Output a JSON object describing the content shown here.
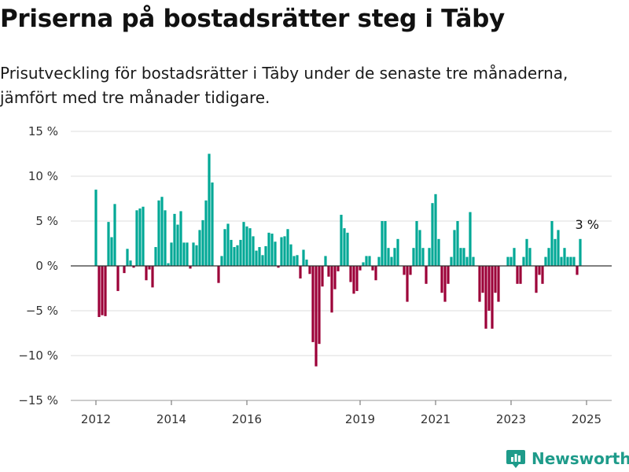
{
  "title": "Priserna på bostadsrätter steg i Täby",
  "subtitle": "Prisutveckling för bostadsrätter i Täby under de senaste tre månaderna, jämfört med tre månader tidigare.",
  "logo_text": "Newsworthy",
  "colors": {
    "positive": "#00a896",
    "negative": "#9c0038",
    "zero_line": "#333333",
    "grid": "#dddddd"
  },
  "chart_data": {
    "type": "bar",
    "title": "Priserna på bostadsrätter steg i Täby",
    "subtitle": "Prisutveckling för bostadsrätter i Täby under de senaste tre månaderna, jämfört med tre månader tidigare.",
    "xlabel": "",
    "ylabel": "",
    "ylim": [
      -15,
      15
    ],
    "x_start": "2012-01",
    "y_ticks": [
      -15,
      -10,
      -5,
      0,
      5,
      10,
      15
    ],
    "y_tick_labels": [
      "−15 %",
      "−10 %",
      "−5 %",
      "0 %",
      "5 %",
      "10 %",
      "15 %"
    ],
    "x_ticks": [
      {
        "label": "2012",
        "month_index": 0
      },
      {
        "label": "2014",
        "month_index": 24
      },
      {
        "label": "2016",
        "month_index": 48
      },
      {
        "label": "2019",
        "month_index": 84
      },
      {
        "label": "2021",
        "month_index": 108
      },
      {
        "label": "2023",
        "month_index": 132
      },
      {
        "label": "2025",
        "month_index": 156
      }
    ],
    "grid": true,
    "annotation": {
      "text": "3 %",
      "month_index": 156,
      "value": 3
    },
    "values": [
      8.5,
      -5.7,
      -5.5,
      -5.6,
      4.9,
      3.2,
      6.9,
      -2.8,
      0.0,
      -0.8,
      1.9,
      0.6,
      -0.2,
      6.2,
      6.4,
      6.6,
      -1.6,
      -0.4,
      -2.4,
      2.1,
      7.3,
      7.7,
      6.2,
      0.3,
      2.6,
      5.8,
      4.6,
      6.1,
      2.6,
      2.6,
      -0.3,
      2.6,
      2.3,
      4.0,
      5.1,
      7.3,
      12.5,
      9.3,
      0.0,
      -1.9,
      1.1,
      4.1,
      4.7,
      2.9,
      2.1,
      2.3,
      2.9,
      4.9,
      4.4,
      4.2,
      3.3,
      1.7,
      2.1,
      1.2,
      2.2,
      3.7,
      3.6,
      2.7,
      -0.2,
      3.2,
      3.3,
      4.1,
      2.4,
      1.1,
      1.2,
      -1.4,
      1.8,
      0.7,
      -0.9,
      -8.5,
      -11.2,
      -8.7,
      -2.3,
      1.1,
      -1.2,
      -5.2,
      -2.6,
      -0.6,
      5.7,
      4.2,
      3.7,
      -1.8,
      -3.1,
      -2.8,
      -0.5,
      0.4,
      1.1,
      1.1,
      -0.5,
      -1.6,
      1.0,
      5.0,
      5.0,
      2.0,
      1.0,
      2.0,
      3.0,
      0.0,
      -1.0,
      -4.0,
      -1.0,
      2.0,
      5.0,
      4.0,
      2.0,
      -2.0,
      2.0,
      7.0,
      8.0,
      3.0,
      -3.0,
      -4.0,
      -2.0,
      1.0,
      4.0,
      5.0,
      2.0,
      2.0,
      1.0,
      6.0,
      1.0,
      0.0,
      -4.0,
      -3.0,
      -7.0,
      -5.0,
      -7.0,
      -3.0,
      -4.0,
      0.0,
      0.0,
      1.0,
      1.0,
      2.0,
      -2.0,
      -2.0,
      1.0,
      3.0,
      2.0,
      0.0,
      -3.0,
      -1.0,
      -2.0,
      1.0,
      2.0,
      5.0,
      3.0,
      4.0,
      1.0,
      2.0,
      1.0,
      1.0,
      1.0,
      -1.0,
      3.0
    ]
  }
}
